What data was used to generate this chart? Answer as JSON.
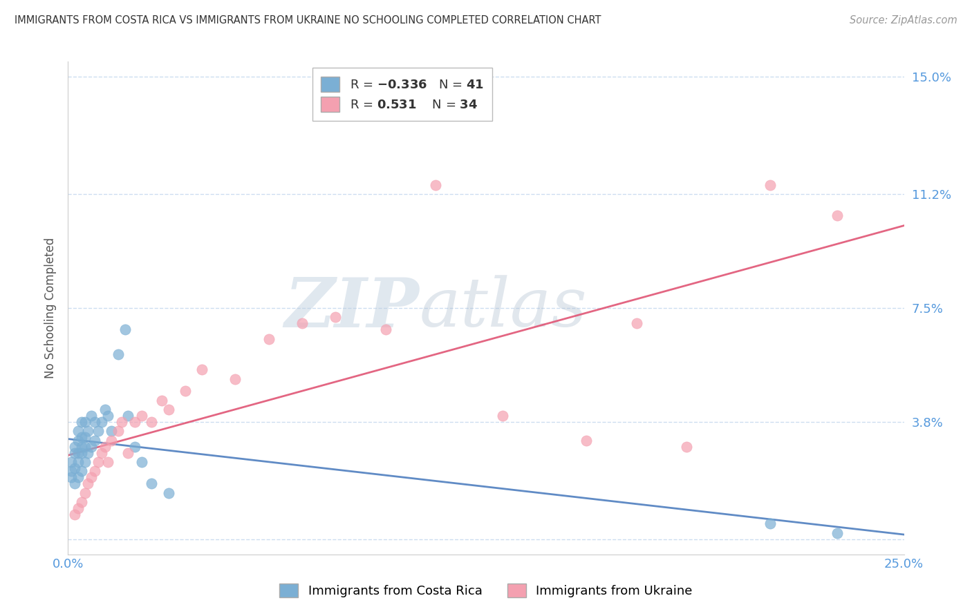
{
  "title": "IMMIGRANTS FROM COSTA RICA VS IMMIGRANTS FROM UKRAINE NO SCHOOLING COMPLETED CORRELATION CHART",
  "source": "Source: ZipAtlas.com",
  "ylabel": "No Schooling Completed",
  "xlim": [
    0.0,
    0.25
  ],
  "ylim": [
    -0.005,
    0.155
  ],
  "yticks": [
    0.0,
    0.038,
    0.075,
    0.112,
    0.15
  ],
  "ytick_labels": [
    "",
    "3.8%",
    "7.5%",
    "11.2%",
    "15.0%"
  ],
  "xticks": [
    0.0,
    0.25
  ],
  "xtick_labels": [
    "0.0%",
    "25.0%"
  ],
  "color_blue": "#7BAFD4",
  "color_blue_line": "#4477BB",
  "color_pink": "#F4A0B0",
  "color_pink_line": "#E05575",
  "color_axis_labels": "#5599DD",
  "watermark_zip": "ZIP",
  "watermark_atlas": "atlas",
  "background_color": "#FFFFFF",
  "grid_color": "#CCDDF0",
  "costa_rica_x": [
    0.001,
    0.001,
    0.001,
    0.002,
    0.002,
    0.002,
    0.002,
    0.003,
    0.003,
    0.003,
    0.003,
    0.003,
    0.004,
    0.004,
    0.004,
    0.004,
    0.004,
    0.005,
    0.005,
    0.005,
    0.005,
    0.006,
    0.006,
    0.007,
    0.007,
    0.008,
    0.008,
    0.009,
    0.01,
    0.011,
    0.012,
    0.013,
    0.015,
    0.017,
    0.018,
    0.02,
    0.022,
    0.025,
    0.03,
    0.21,
    0.23
  ],
  "costa_rica_y": [
    0.02,
    0.022,
    0.025,
    0.018,
    0.023,
    0.028,
    0.03,
    0.02,
    0.025,
    0.028,
    0.032,
    0.035,
    0.022,
    0.028,
    0.03,
    0.033,
    0.038,
    0.025,
    0.03,
    0.033,
    0.038,
    0.028,
    0.035,
    0.03,
    0.04,
    0.032,
    0.038,
    0.035,
    0.038,
    0.042,
    0.04,
    0.035,
    0.06,
    0.068,
    0.04,
    0.03,
    0.025,
    0.018,
    0.015,
    0.005,
    0.002
  ],
  "ukraine_x": [
    0.002,
    0.003,
    0.004,
    0.005,
    0.006,
    0.007,
    0.008,
    0.009,
    0.01,
    0.011,
    0.012,
    0.013,
    0.015,
    0.016,
    0.018,
    0.02,
    0.022,
    0.025,
    0.028,
    0.03,
    0.035,
    0.04,
    0.05,
    0.06,
    0.07,
    0.08,
    0.095,
    0.11,
    0.13,
    0.155,
    0.17,
    0.185,
    0.21,
    0.23
  ],
  "ukraine_y": [
    0.008,
    0.01,
    0.012,
    0.015,
    0.018,
    0.02,
    0.022,
    0.025,
    0.028,
    0.03,
    0.025,
    0.032,
    0.035,
    0.038,
    0.028,
    0.038,
    0.04,
    0.038,
    0.045,
    0.042,
    0.048,
    0.055,
    0.052,
    0.065,
    0.07,
    0.072,
    0.068,
    0.115,
    0.04,
    0.032,
    0.07,
    0.03,
    0.115,
    0.105
  ]
}
